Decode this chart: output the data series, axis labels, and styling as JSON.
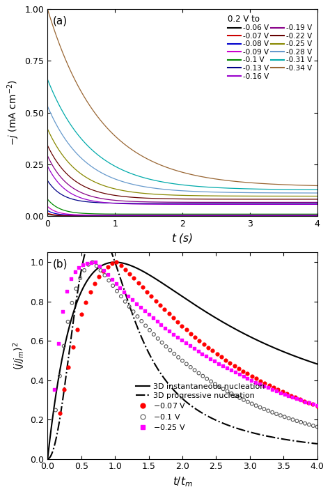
{
  "panel_a": {
    "xlabel": "$t$ (s)",
    "ylabel": "$-j$ (mA cm$^{-2}$)",
    "xlim": [
      0,
      4
    ],
    "ylim": [
      0.0,
      1.0
    ],
    "yticks": [
      0.0,
      0.25,
      0.5,
      0.75,
      1.0
    ],
    "xticks": [
      0,
      1,
      2,
      3,
      4
    ],
    "legend_header": "0.2 V to",
    "curves": [
      {
        "label": "-0.06 V",
        "color": "#000000",
        "j0": 0.008,
        "tau": 0.08,
        "steady": 0.0
      },
      {
        "label": "-0.07 V",
        "color": "#cc0000",
        "j0": 0.012,
        "tau": 0.1,
        "steady": 0.001
      },
      {
        "label": "-0.08 V",
        "color": "#0000cc",
        "j0": 0.025,
        "tau": 0.12,
        "steady": 0.002
      },
      {
        "label": "-0.09 V",
        "color": "#cc00cc",
        "j0": 0.045,
        "tau": 0.14,
        "steady": 0.003
      },
      {
        "label": "-0.1 V",
        "color": "#008800",
        "j0": 0.08,
        "tau": 0.18,
        "steady": 0.008
      },
      {
        "label": "-0.13 V",
        "color": "#000088",
        "j0": 0.17,
        "tau": 0.22,
        "steady": 0.06
      },
      {
        "label": "-0.16 V",
        "color": "#9900cc",
        "j0": 0.24,
        "tau": 0.28,
        "steady": 0.055
      },
      {
        "label": "-0.19 V",
        "color": "#880088",
        "j0": 0.29,
        "tau": 0.32,
        "steady": 0.065
      },
      {
        "label": "-0.22 V",
        "color": "#660000",
        "j0": 0.34,
        "tau": 0.38,
        "steady": 0.08
      },
      {
        "label": "-0.25 V",
        "color": "#888800",
        "j0": 0.42,
        "tau": 0.45,
        "steady": 0.095
      },
      {
        "label": "-0.28 V",
        "color": "#6699cc",
        "j0": 0.53,
        "tau": 0.55,
        "steady": 0.11
      },
      {
        "label": "-0.31 V",
        "color": "#00aaaa",
        "j0": 0.66,
        "tau": 0.65,
        "steady": 0.125
      },
      {
        "label": "-0.34 V",
        "color": "#996633",
        "j0": 1.0,
        "tau": 0.8,
        "steady": 0.14
      }
    ]
  },
  "panel_b": {
    "xlabel": "$\\mathbf{t/t_{m}}$",
    "ylabel": "$(j/j_{\\mathbf{m}})^{2}$",
    "xlim": [
      0.0,
      4.0
    ],
    "ylim": [
      0.0,
      1.05
    ],
    "yticks": [
      0.0,
      0.2,
      0.4,
      0.6,
      0.8,
      1.0
    ],
    "xticks": [
      0.0,
      0.5,
      1.0,
      1.5,
      2.0,
      2.5,
      3.0,
      3.5,
      4.0
    ]
  }
}
